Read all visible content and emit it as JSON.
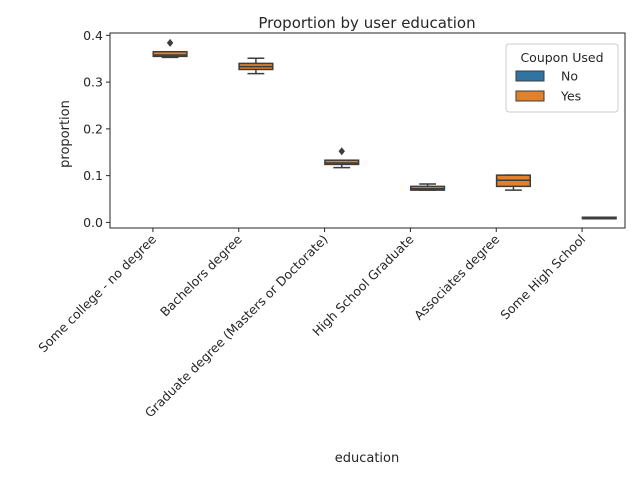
{
  "chart_data": {
    "type": "box",
    "title": "Proportion by user education",
    "xlabel": "education",
    "ylabel": "proportion",
    "ylim": [
      -0.012,
      0.405
    ],
    "yticks": [
      0.0,
      0.1,
      0.2,
      0.3,
      0.4
    ],
    "ytick_labels": [
      "0.0",
      "0.1",
      "0.2",
      "0.3",
      "0.4"
    ],
    "categories": [
      "Some college - no degree",
      "Bachelors degree",
      "Graduate degree (Masters or Doctorate)",
      "High School Graduate",
      "Associates degree",
      "Some High School"
    ],
    "legend": {
      "title": "Coupon Used",
      "placement": "top-right",
      "entries": [
        {
          "name": "No",
          "color": "#3274a1"
        },
        {
          "name": "Yes",
          "color": "#e1812c"
        }
      ]
    },
    "series": [
      {
        "name": "No",
        "color": "#3274a1",
        "boxes": [
          null,
          null,
          null,
          null,
          null,
          null
        ]
      },
      {
        "name": "Yes",
        "color": "#e1812c",
        "boxes": [
          {
            "whislo": 0.353,
            "q1": 0.355,
            "med": 0.358,
            "q3": 0.365,
            "whishi": 0.365,
            "fliers": [
              0.384
            ]
          },
          {
            "whislo": 0.318,
            "q1": 0.327,
            "med": 0.333,
            "q3": 0.34,
            "whishi": 0.351,
            "fliers": []
          },
          {
            "whislo": 0.117,
            "q1": 0.124,
            "med": 0.127,
            "q3": 0.133,
            "whishi": 0.133,
            "fliers": [
              0.152
            ]
          },
          {
            "whislo": 0.069,
            "q1": 0.069,
            "med": 0.072,
            "q3": 0.077,
            "whishi": 0.082,
            "fliers": []
          },
          {
            "whislo": 0.069,
            "q1": 0.077,
            "med": 0.09,
            "q3": 0.101,
            "whishi": 0.101,
            "fliers": []
          },
          {
            "whislo": 0.008,
            "q1": 0.008,
            "med": 0.01,
            "q3": 0.011,
            "whishi": 0.011,
            "fliers": []
          }
        ]
      }
    ],
    "grid": false
  }
}
